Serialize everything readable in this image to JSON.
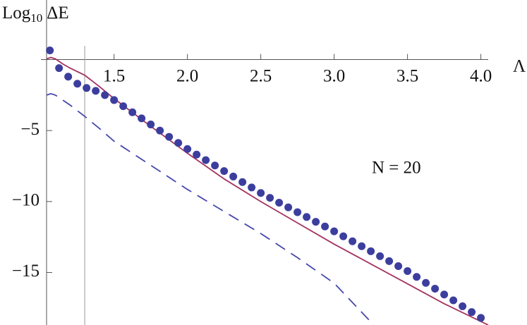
{
  "chart_data": {
    "type": "scatter",
    "ylabel_parts": [
      "Log",
      "10",
      "ΔE"
    ],
    "xlabel": "Λ",
    "annotation": "N = 20",
    "xlim": [
      1.04,
      4.05
    ],
    "ylim": [
      -18.7,
      4.2
    ],
    "xticks": [
      1.5,
      {
        "value": 2,
        "label": "2.0"
      },
      2.5,
      {
        "value": 3,
        "label": "3.0"
      },
      3.5,
      {
        "value": 4,
        "label": "4.0"
      }
    ],
    "yticks": [
      {
        "value": -5,
        "label": "−5"
      },
      {
        "value": -10,
        "label": "−10"
      },
      {
        "value": -15,
        "label": "−15"
      }
    ],
    "vline": 1.3,
    "points": {
      "color": "#3c3e9e",
      "x": [
        1.0625,
        1.125,
        1.1875,
        1.25,
        1.3125,
        1.375,
        1.4375,
        1.5,
        1.5625,
        1.625,
        1.6875,
        1.75,
        1.8125,
        1.875,
        1.9375,
        2.0,
        2.0625,
        2.125,
        2.1875,
        2.25,
        2.3125,
        2.375,
        2.4375,
        2.5,
        2.5625,
        2.625,
        2.6875,
        2.75,
        2.8125,
        2.875,
        2.9375,
        3.0,
        3.0625,
        3.125,
        3.1875,
        3.25,
        3.3125,
        3.375,
        3.4375,
        3.5,
        3.5625,
        3.625,
        3.6875,
        3.75,
        3.8125,
        3.875,
        3.9375,
        4.0
      ],
      "values": [
        0.65,
        -0.6,
        -1.2,
        -1.7,
        -2.0,
        -2.2,
        -2.5,
        -2.85,
        -3.28,
        -3.71,
        -4.14,
        -4.57,
        -5.0,
        -5.44,
        -5.87,
        -6.3,
        -6.69,
        -7.08,
        -7.46,
        -7.85,
        -8.24,
        -8.63,
        -9.01,
        -9.4,
        -9.74,
        -10.08,
        -10.41,
        -10.75,
        -11.09,
        -11.43,
        -11.76,
        -12.1,
        -12.45,
        -12.8,
        -13.15,
        -13.5,
        -13.85,
        -14.2,
        -14.55,
        -14.9,
        -15.31,
        -15.73,
        -16.14,
        -16.55,
        -16.96,
        -17.38,
        -17.79,
        -18.2
      ]
    },
    "lines": [
      {
        "color": "#a3325e",
        "dash": false,
        "x": [
          1.04,
          1.07,
          1.1,
          1.15,
          1.2,
          1.3,
          1.4,
          1.5,
          1.75,
          2.0,
          2.25,
          2.5,
          2.75,
          3.0,
          3.25,
          3.5,
          3.75,
          4.05
        ],
        "values": [
          0.05,
          0.15,
          0.05,
          -0.3,
          -0.6,
          -1.1,
          -1.9,
          -2.75,
          -4.7,
          -6.6,
          -8.4,
          -10.0,
          -11.5,
          -13.0,
          -14.4,
          -15.8,
          -17.2,
          -18.7
        ]
      },
      {
        "color": "#4747ad",
        "dash": true,
        "x": [
          1.04,
          1.07,
          1.1,
          1.15,
          1.2,
          1.3,
          1.4,
          1.5,
          1.75,
          2.0,
          2.25,
          2.5,
          2.75,
          3.0,
          3.27
        ],
        "values": [
          -2.5,
          -2.4,
          -2.5,
          -2.85,
          -3.2,
          -4.0,
          -4.85,
          -5.75,
          -7.45,
          -9.15,
          -10.7,
          -12.25,
          -13.95,
          -15.75,
          -18.7
        ]
      }
    ]
  }
}
